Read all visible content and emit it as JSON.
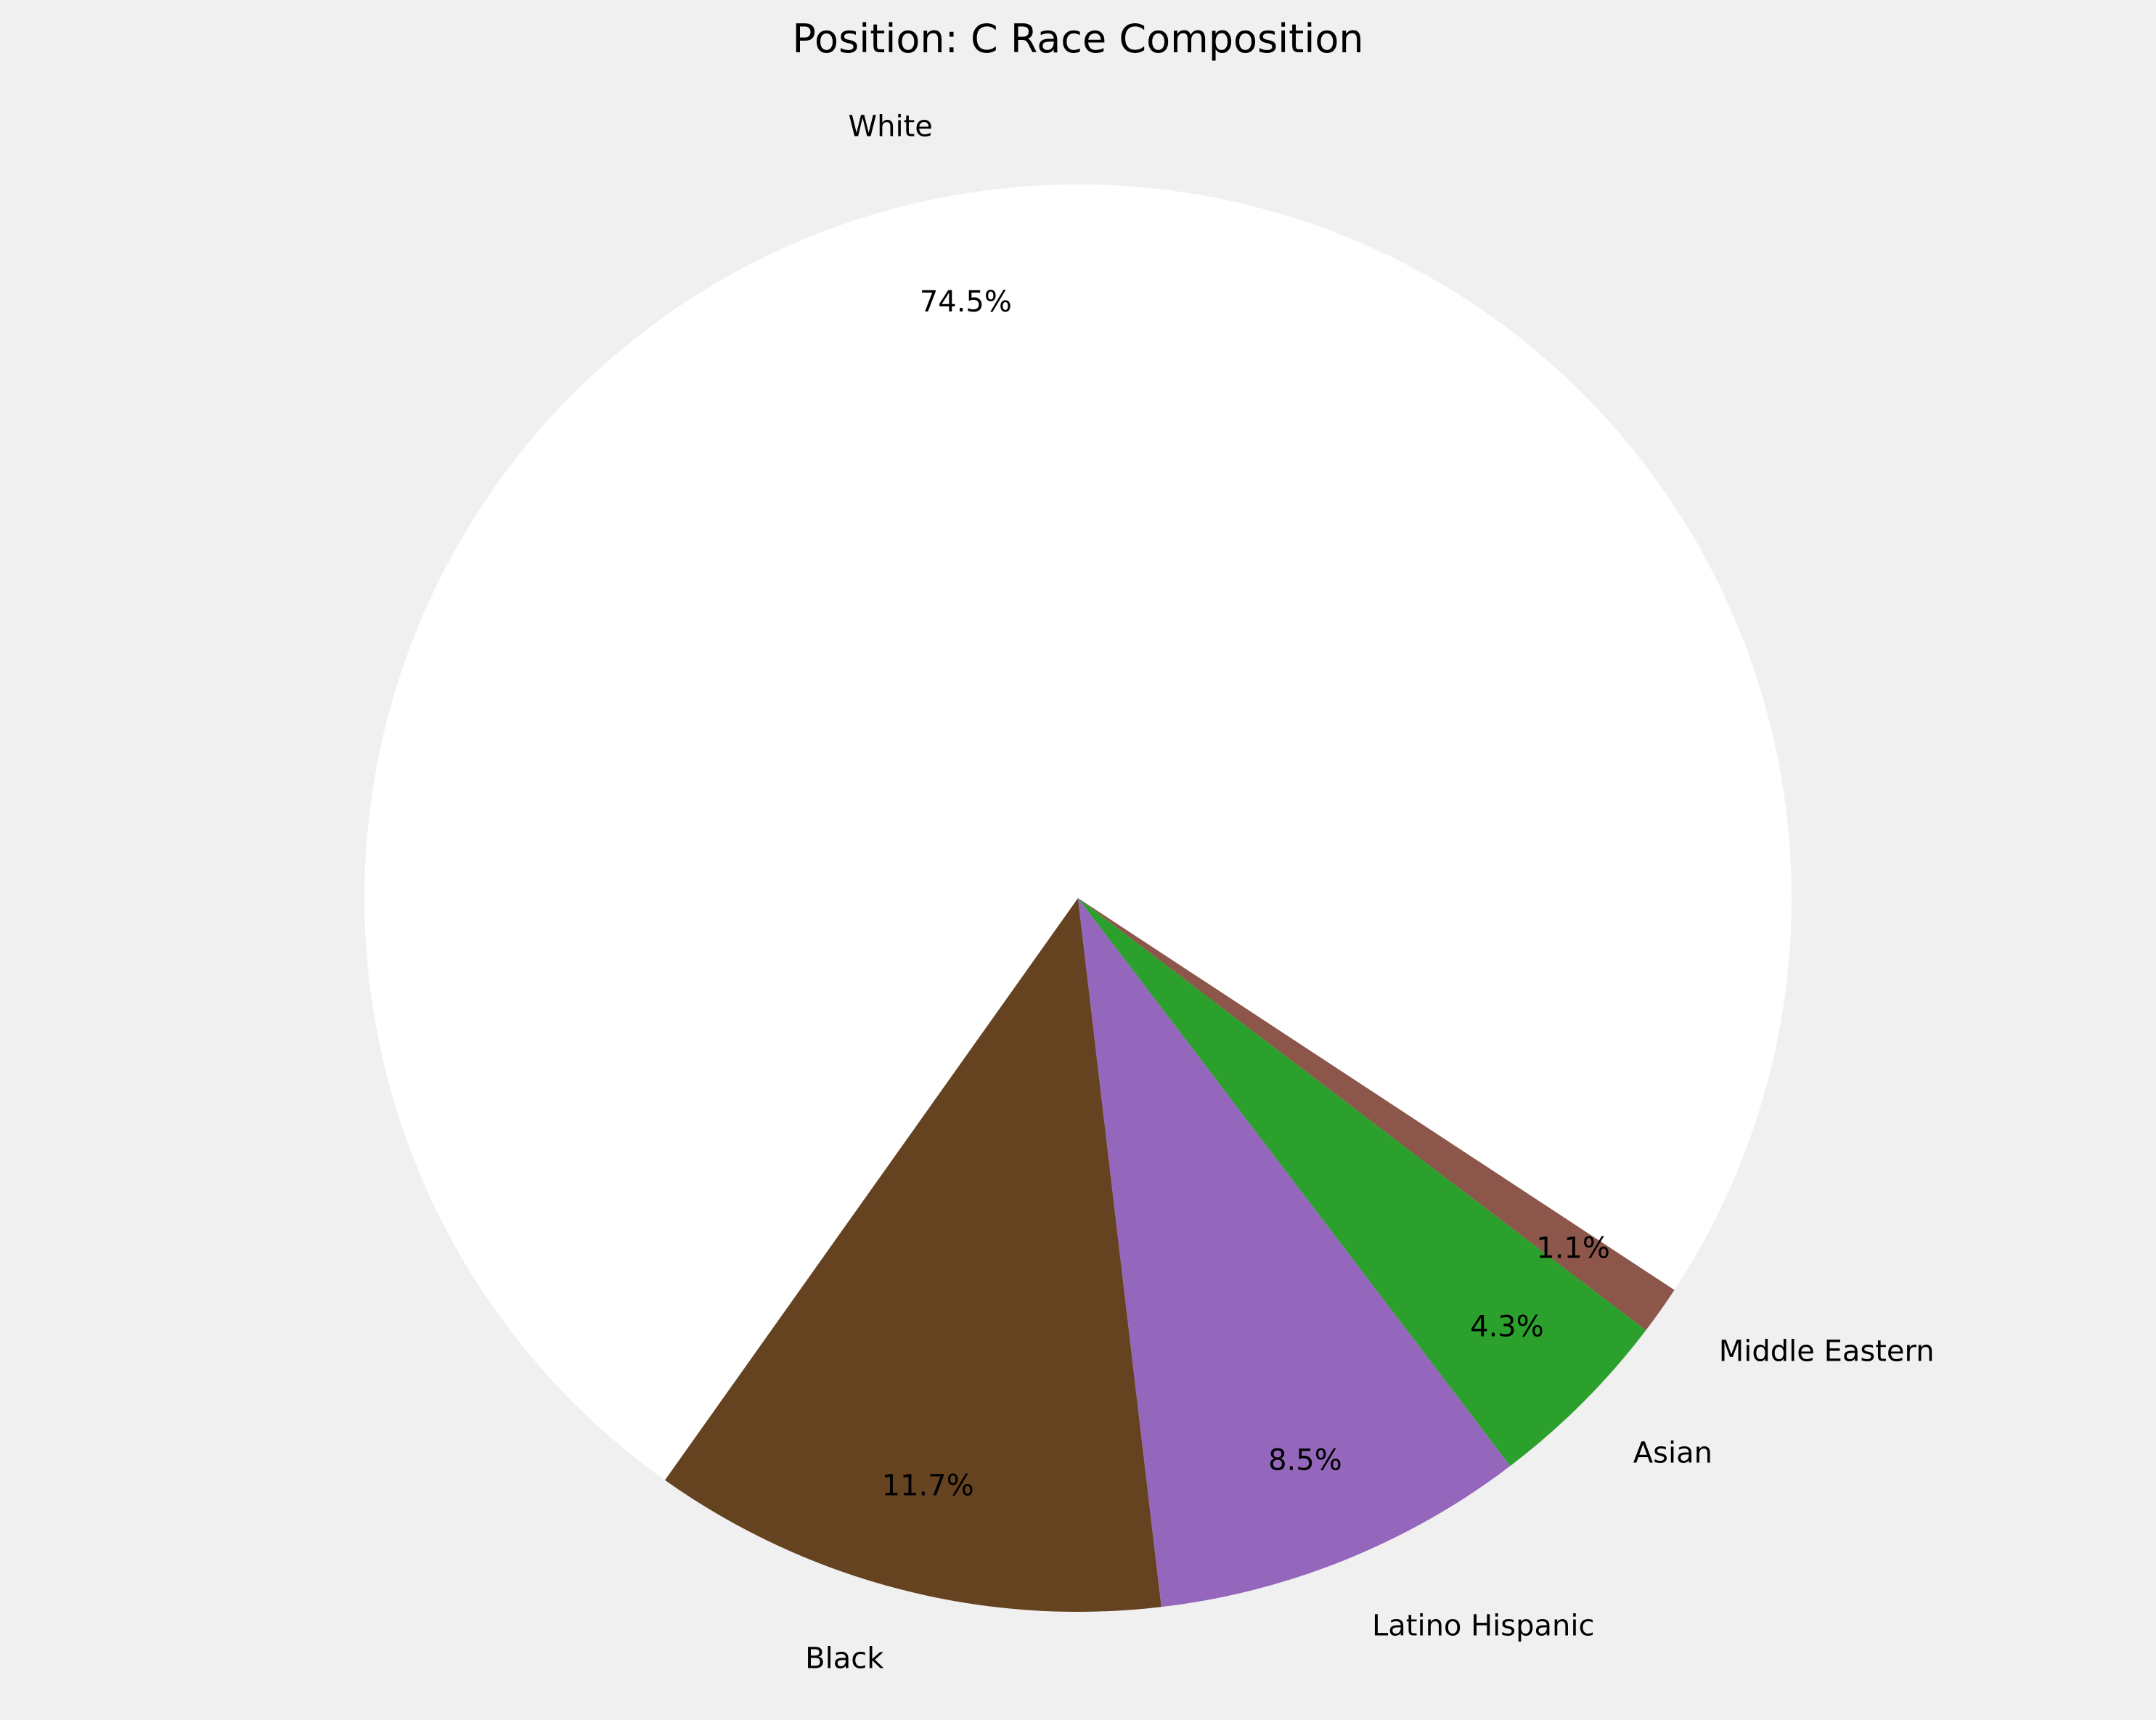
{
  "chart_data": {
    "type": "pie",
    "title": "Position: C Race Composition",
    "slices": [
      {
        "label": "White",
        "value": 74.5,
        "pct_label": "74.5%",
        "color": "#ffffff"
      },
      {
        "label": "Black",
        "value": 11.7,
        "pct_label": "11.7%",
        "color": "#654321"
      },
      {
        "label": "Latino Hispanic",
        "value": 8.5,
        "pct_label": "8.5%",
        "color": "#9467bd"
      },
      {
        "label": "Asian",
        "value": 4.3,
        "pct_label": "4.3%",
        "color": "#2ca02c"
      },
      {
        "label": "Middle Eastern",
        "value": 1.1,
        "pct_label": "1.1%",
        "color": "#8c564b"
      }
    ],
    "legend": "none"
  }
}
